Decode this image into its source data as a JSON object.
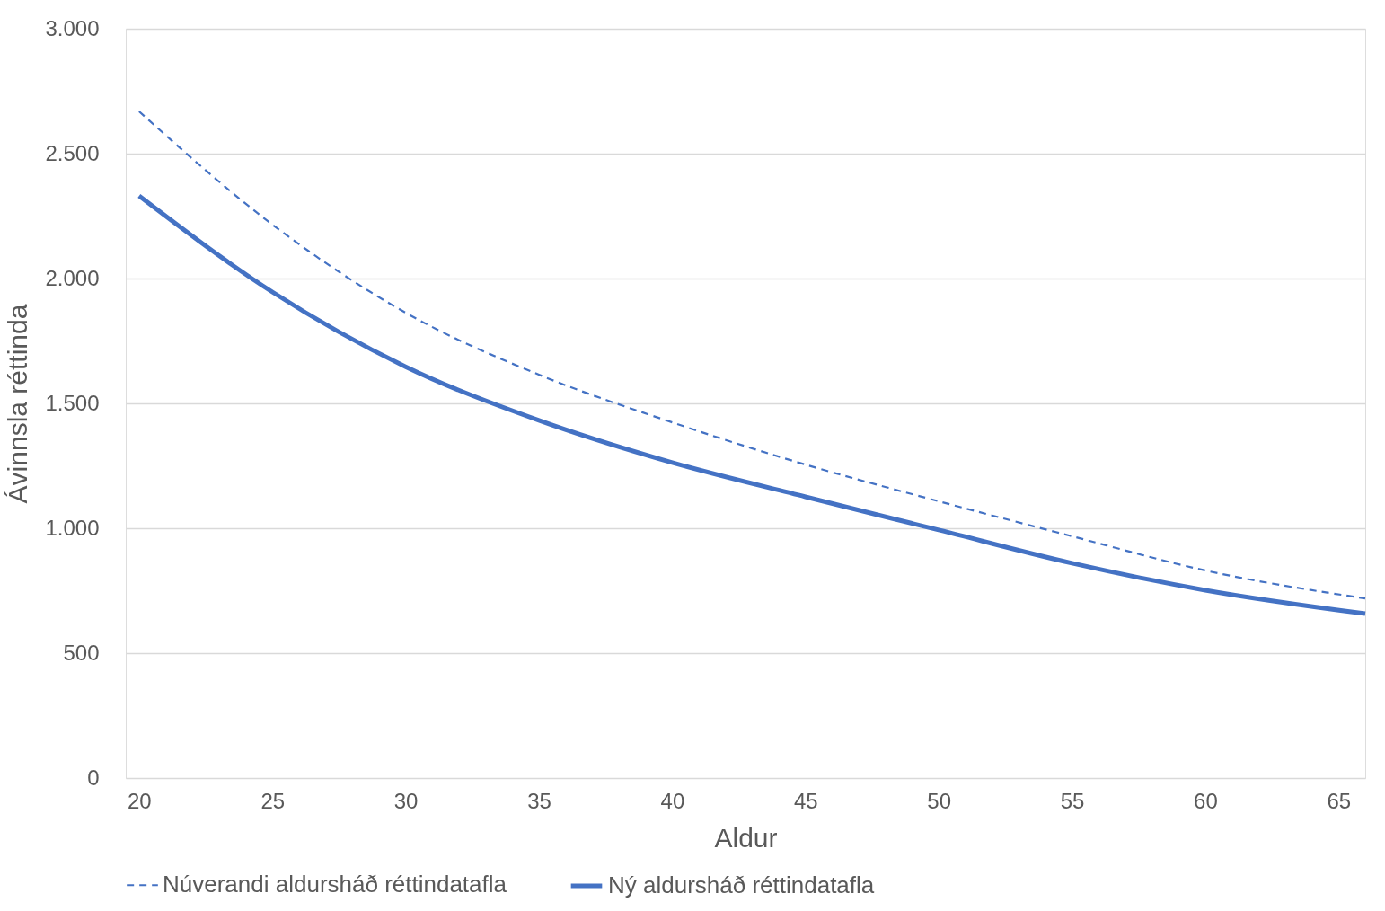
{
  "chart_data": {
    "type": "line",
    "xlabel": "Aldur",
    "ylabel": "Ávinnsla  réttinda",
    "x": [
      20,
      25,
      30,
      35,
      40,
      45,
      50,
      55,
      60,
      66
    ],
    "series": [
      {
        "name": "Núverandi aldursháð réttindatafla",
        "color": "#4472c4",
        "line_style": "dashed",
        "values": [
          2669,
          2216,
          1863,
          1615,
          1424,
          1255,
          1108,
          968,
          831,
          719
        ]
      },
      {
        "name": "Ný aldursháð réttindatafla",
        "color": "#4472c4",
        "line_style": "solid",
        "values": [
          2331,
          1946,
          1647,
          1432,
          1263,
          1126,
          993,
          860,
          752,
          658
        ]
      }
    ],
    "xlim": [
      19.5,
      66
    ],
    "xticks": [
      20,
      25,
      30,
      35,
      40,
      45,
      50,
      55,
      60,
      65
    ],
    "ylim": [
      0,
      3000
    ],
    "yticks": [
      0,
      500,
      {
        "value": 1000,
        "label": "1.000"
      },
      {
        "value": 1500,
        "label": "1.500"
      },
      {
        "value": 2000,
        "label": "2.000"
      },
      {
        "value": 2500,
        "label": "2.500"
      },
      {
        "value": 3000,
        "label": "3.000"
      }
    ],
    "grid": "y",
    "legend": "bottom",
    "marker": "none"
  }
}
